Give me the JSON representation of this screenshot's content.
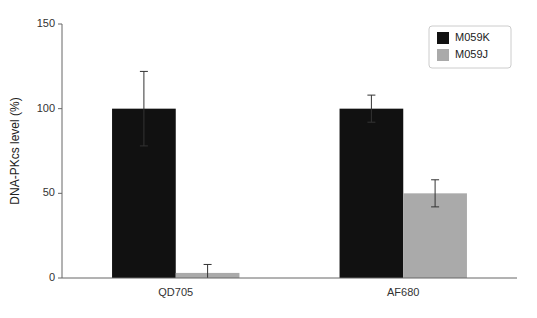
{
  "chart_data": {
    "type": "bar",
    "y_label": "DNA-PKcs level (%)",
    "categories": [
      "QD705",
      "AF680"
    ],
    "series": [
      {
        "name": "M059K",
        "color": "#111111",
        "values": [
          100,
          100
        ],
        "errors": [
          22,
          8
        ]
      },
      {
        "name": "M059J",
        "color": "#aaaaaa",
        "values": [
          3,
          50
        ],
        "errors": [
          5,
          8
        ]
      }
    ],
    "ylim": [
      0,
      150
    ],
    "yticks": [
      0,
      50,
      100,
      150
    ],
    "grid": false,
    "legend": "upper right"
  }
}
